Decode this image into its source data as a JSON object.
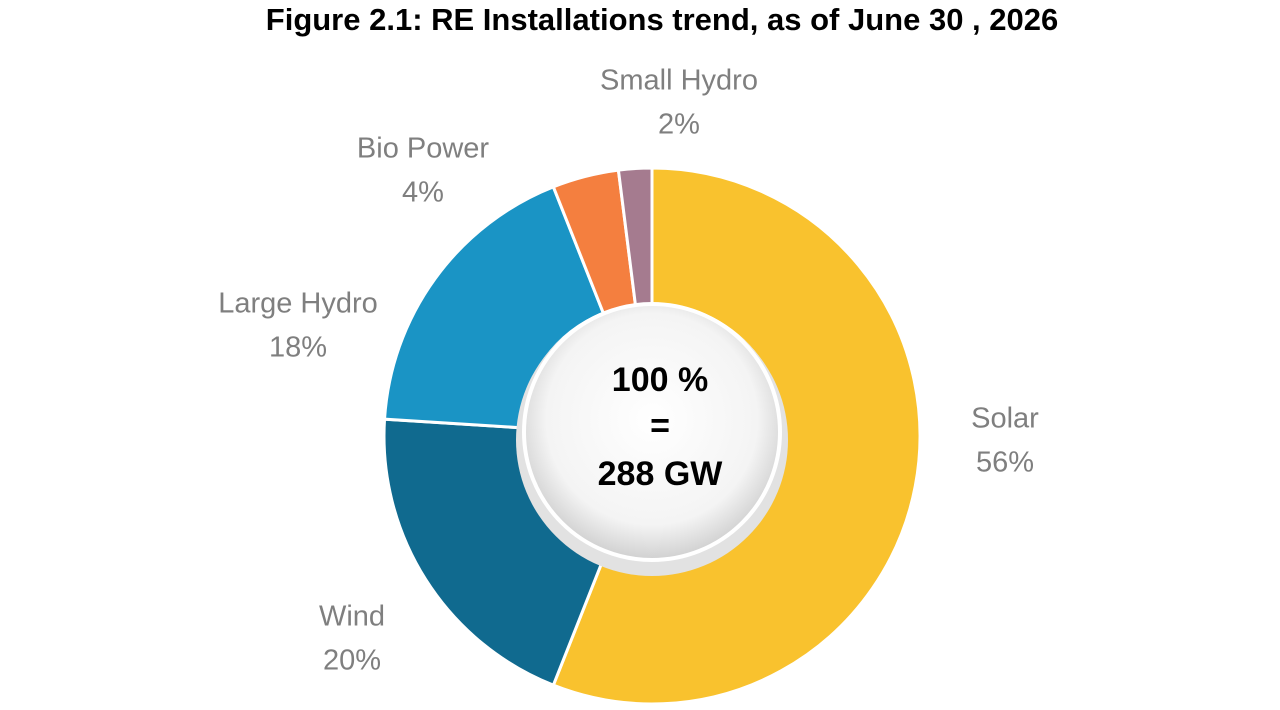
{
  "chart_data": {
    "type": "donut",
    "title": "Figure 2.1: RE Installations trend, as of June 30 , 2026",
    "categories": [
      "Solar",
      "Wind",
      "Large Hydro",
      "Bio Power",
      "Small Hydro"
    ],
    "values": [
      56,
      20,
      18,
      4,
      2
    ],
    "value_labels": [
      "56%",
      "20%",
      "18%",
      "4%",
      "2%"
    ],
    "colors": [
      "#f9c22e",
      "#106a8f",
      "#1a94c5",
      "#f47f3f",
      "#a57b8f"
    ],
    "center_text": [
      "100 %",
      "=",
      "288 GW"
    ]
  }
}
